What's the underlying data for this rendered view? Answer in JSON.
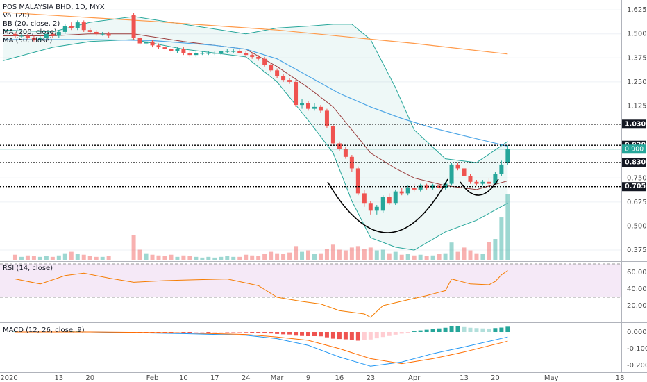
{
  "chart_data": {
    "type": "candlestick",
    "title": "POS MALAYSIA BHD, 1D, MYX",
    "volume_label": "Vol (20)",
    "dates": [
      "2020-01-02",
      "2020-01-03",
      "2020-01-06",
      "2020-01-07",
      "2020-01-08",
      "2020-01-09",
      "2020-01-10",
      "2020-01-13",
      "2020-01-14",
      "2020-01-15",
      "2020-01-16",
      "2020-01-17",
      "2020-01-20",
      "2020-01-21",
      "2020-01-22",
      "2020-01-23",
      "2020-01-29",
      "2020-01-30",
      "2020-01-31",
      "2020-02-03",
      "2020-02-04",
      "2020-02-05",
      "2020-02-06",
      "2020-02-07",
      "2020-02-10",
      "2020-02-11",
      "2020-02-12",
      "2020-02-13",
      "2020-02-14",
      "2020-02-17",
      "2020-02-18",
      "2020-02-19",
      "2020-02-20",
      "2020-02-21",
      "2020-02-24",
      "2020-02-25",
      "2020-02-26",
      "2020-02-27",
      "2020-02-28",
      "2020-03-02",
      "2020-03-03",
      "2020-03-04",
      "2020-03-05",
      "2020-03-06",
      "2020-03-09",
      "2020-03-10",
      "2020-03-11",
      "2020-03-12",
      "2020-03-13",
      "2020-03-16",
      "2020-03-17",
      "2020-03-18",
      "2020-03-19",
      "2020-03-20",
      "2020-03-23",
      "2020-03-24",
      "2020-03-25",
      "2020-03-26",
      "2020-03-27",
      "2020-03-30",
      "2020-03-31",
      "2020-04-01",
      "2020-04-02",
      "2020-04-03",
      "2020-04-06",
      "2020-04-07",
      "2020-04-08",
      "2020-04-09",
      "2020-04-10",
      "2020-04-13",
      "2020-04-14",
      "2020-04-15",
      "2020-04-16",
      "2020-04-17",
      "2020-04-20",
      "2020-04-21",
      "2020-04-22"
    ],
    "open": [
      1.5,
      1.49,
      1.49,
      1.48,
      1.47,
      1.48,
      1.5,
      1.49,
      1.51,
      1.54,
      1.53,
      1.56,
      1.52,
      1.51,
      1.5,
      1.5,
      1.6,
      1.48,
      1.45,
      1.46,
      1.44,
      1.43,
      1.42,
      1.41,
      1.42,
      1.4,
      1.39,
      1.4,
      1.4,
      1.4,
      1.4,
      1.41,
      1.41,
      1.41,
      1.4,
      1.39,
      1.38,
      1.37,
      1.34,
      1.31,
      1.28,
      1.26,
      1.25,
      1.13,
      1.14,
      1.11,
      1.12,
      1.1,
      1.02,
      0.93,
      0.9,
      0.86,
      0.8,
      0.67,
      0.62,
      0.58,
      0.58,
      0.65,
      0.62,
      0.68,
      0.67,
      0.7,
      0.69,
      0.71,
      0.7,
      0.71,
      0.7,
      0.72,
      0.82,
      0.8,
      0.76,
      0.73,
      0.72,
      0.73,
      0.72,
      0.77,
      0.83
    ],
    "high": [
      1.51,
      1.5,
      1.5,
      1.49,
      1.49,
      1.5,
      1.51,
      1.52,
      1.55,
      1.56,
      1.57,
      1.57,
      1.53,
      1.52,
      1.51,
      1.51,
      1.61,
      1.49,
      1.47,
      1.47,
      1.45,
      1.44,
      1.43,
      1.43,
      1.43,
      1.41,
      1.41,
      1.41,
      1.41,
      1.41,
      1.41,
      1.42,
      1.42,
      1.42,
      1.41,
      1.4,
      1.39,
      1.38,
      1.35,
      1.32,
      1.29,
      1.27,
      1.26,
      1.16,
      1.15,
      1.14,
      1.13,
      1.11,
      1.03,
      0.94,
      0.91,
      0.87,
      0.81,
      0.69,
      0.63,
      0.61,
      0.66,
      0.67,
      0.69,
      0.7,
      0.71,
      0.72,
      0.72,
      0.72,
      0.72,
      0.72,
      0.73,
      0.83,
      0.83,
      0.81,
      0.77,
      0.74,
      0.74,
      0.75,
      0.78,
      0.84,
      0.92
    ],
    "low": [
      1.48,
      1.48,
      1.47,
      1.46,
      1.46,
      1.47,
      1.48,
      1.48,
      1.5,
      1.52,
      1.52,
      1.51,
      1.5,
      1.49,
      1.49,
      1.48,
      1.47,
      1.44,
      1.44,
      1.43,
      1.42,
      1.41,
      1.4,
      1.4,
      1.39,
      1.38,
      1.38,
      1.39,
      1.39,
      1.39,
      1.39,
      1.4,
      1.4,
      1.4,
      1.38,
      1.37,
      1.36,
      1.33,
      1.3,
      1.27,
      1.25,
      1.24,
      1.12,
      1.11,
      1.1,
      1.1,
      1.09,
      1.01,
      0.92,
      0.89,
      0.85,
      0.78,
      0.66,
      0.6,
      0.56,
      0.56,
      0.57,
      0.61,
      0.61,
      0.66,
      0.66,
      0.68,
      0.68,
      0.69,
      0.69,
      0.69,
      0.69,
      0.71,
      0.79,
      0.75,
      0.72,
      0.71,
      0.71,
      0.71,
      0.72,
      0.76,
      0.82
    ],
    "close": [
      1.49,
      1.49,
      1.48,
      1.47,
      1.48,
      1.5,
      1.49,
      1.51,
      1.54,
      1.53,
      1.56,
      1.52,
      1.51,
      1.5,
      1.5,
      1.49,
      1.48,
      1.45,
      1.46,
      1.44,
      1.43,
      1.42,
      1.41,
      1.42,
      1.4,
      1.39,
      1.4,
      1.4,
      1.4,
      1.4,
      1.41,
      1.41,
      1.41,
      1.4,
      1.39,
      1.38,
      1.37,
      1.34,
      1.31,
      1.28,
      1.26,
      1.25,
      1.13,
      1.14,
      1.11,
      1.12,
      1.1,
      1.02,
      0.93,
      0.9,
      0.86,
      0.8,
      0.67,
      0.62,
      0.58,
      0.6,
      0.65,
      0.62,
      0.68,
      0.67,
      0.7,
      0.69,
      0.71,
      0.7,
      0.71,
      0.7,
      0.72,
      0.82,
      0.8,
      0.76,
      0.73,
      0.72,
      0.73,
      0.72,
      0.77,
      0.82,
      0.9
    ],
    "volume": [
      8,
      5,
      7,
      6,
      5,
      6,
      5,
      7,
      10,
      12,
      9,
      8,
      6,
      5,
      5,
      6,
      35,
      15,
      10,
      8,
      7,
      6,
      8,
      5,
      7,
      6,
      5,
      4,
      5,
      4,
      5,
      6,
      5,
      5,
      8,
      7,
      6,
      9,
      12,
      10,
      9,
      11,
      20,
      12,
      14,
      9,
      10,
      16,
      22,
      15,
      14,
      18,
      20,
      16,
      18,
      14,
      15,
      10,
      12,
      8,
      9,
      7,
      8,
      6,
      7,
      9,
      10,
      25,
      12,
      18,
      14,
      10,
      9,
      26,
      30,
      60,
      92
    ],
    "up_color": "#26a69a",
    "down_color": "#ef5350",
    "xlim": [
      "2019-12-31",
      "2020-05-18"
    ],
    "xticks": [
      {
        "value": "2020-01-01",
        "label": "2020"
      },
      {
        "value": "2020-01-13",
        "label": "13"
      },
      {
        "value": "2020-01-20",
        "label": "20"
      },
      {
        "value": "2020-02-03",
        "label": "Feb"
      },
      {
        "value": "2020-02-10",
        "label": "10"
      },
      {
        "value": "2020-02-17",
        "label": "17"
      },
      {
        "value": "2020-02-24",
        "label": "24"
      },
      {
        "value": "2020-03-02",
        "label": "Mar"
      },
      {
        "value": "2020-03-09",
        "label": "9"
      },
      {
        "value": "2020-03-16",
        "label": "16"
      },
      {
        "value": "2020-03-23",
        "label": "23"
      },
      {
        "value": "2020-04-01",
        "label": "Apr"
      },
      {
        "value": "2020-04-13",
        "label": "13"
      },
      {
        "value": "2020-04-20",
        "label": "20"
      },
      {
        "value": "2020-05-01",
        "label": "May"
      },
      {
        "value": "2020-05-18",
        "label": "18"
      }
    ],
    "ylim": [
      0.321,
      1.676
    ],
    "yticks": [
      1.625,
      {
        "value": 1.5,
        "label": "1.500"
      },
      1.375,
      {
        "value": 1.25,
        "label": "1.250"
      },
      1.125,
      {
        "value": 0.75,
        "label": "0.750"
      },
      0.625,
      {
        "value": 0.5,
        "label": "0.500"
      },
      0.375
    ],
    "grid": true,
    "levels": [
      {
        "value": 1.03,
        "label": "1.030"
      },
      {
        "value": 0.92,
        "label": "0.920"
      },
      {
        "value": 0.83,
        "label": "0.830"
      },
      {
        "value": 0.705,
        "label": "0.705"
      }
    ],
    "last_price": {
      "value": 0.9,
      "label": "0.900"
    },
    "bb": {
      "name": "BB (20, close, 2)",
      "band_color": "#26a69a",
      "basis_color": "#9b3d3d",
      "x": [
        "2019-12-31",
        "2020-01-10",
        "2020-01-20",
        "2020-01-29",
        "2020-02-10",
        "2020-02-24",
        "2020-03-02",
        "2020-03-09",
        "2020-03-13",
        "2020-03-18",
        "2020-03-23",
        "2020-03-27",
        "2020-04-01",
        "2020-04-08",
        "2020-04-15",
        "2020-04-22"
      ],
      "upper": [
        1.52,
        1.51,
        1.56,
        1.59,
        1.55,
        1.5,
        1.53,
        1.54,
        1.55,
        1.55,
        1.47,
        1.22,
        1.0,
        0.85,
        0.83,
        0.94
      ],
      "basis": [
        1.49,
        1.49,
        1.5,
        1.5,
        1.46,
        1.42,
        1.33,
        1.22,
        1.12,
        1.0,
        0.88,
        0.8,
        0.75,
        0.71,
        0.69,
        0.735
      ],
      "lower": [
        1.36,
        1.43,
        1.46,
        1.47,
        1.42,
        1.38,
        1.25,
        1.05,
        0.88,
        0.63,
        0.44,
        0.39,
        0.375,
        0.47,
        0.53,
        0.62
      ]
    },
    "overlays": [
      {
        "name": "MA (200, close)",
        "color": "#ff9a4a",
        "x": [
          "2019-12-31",
          "2020-02-03",
          "2020-03-02",
          "2020-04-01",
          "2020-04-22"
        ],
        "values": [
          1.612,
          1.565,
          1.52,
          1.45,
          1.395
        ]
      },
      {
        "name": "MA (50, close)",
        "color": "#4ea6e6",
        "x": [
          "2019-12-31",
          "2020-01-20",
          "2020-02-03",
          "2020-02-17",
          "2020-02-24",
          "2020-03-02",
          "2020-03-09",
          "2020-03-16",
          "2020-03-23",
          "2020-03-30",
          "2020-04-06",
          "2020-04-13",
          "2020-04-22"
        ],
        "values": [
          1.47,
          1.47,
          1.465,
          1.44,
          1.42,
          1.37,
          1.28,
          1.19,
          1.12,
          1.06,
          1.01,
          0.97,
          0.915
        ]
      }
    ],
    "rsi": {
      "name": "RSI (14, close)",
      "color": "#f57c00",
      "band": [
        30,
        70
      ],
      "band_color": "#9c27b0",
      "x": [
        "2020-01-02",
        "2020-01-08",
        "2020-01-14",
        "2020-01-17",
        "2020-01-23",
        "2020-01-29",
        "2020-02-05",
        "2020-02-12",
        "2020-02-19",
        "2020-02-26",
        "2020-03-02",
        "2020-03-06",
        "2020-03-11",
        "2020-03-16",
        "2020-03-20",
        "2020-03-23",
        "2020-03-25",
        "2020-03-31",
        "2020-04-03",
        "2020-04-08",
        "2020-04-09",
        "2020-04-14",
        "2020-04-17",
        "2020-04-20",
        "2020-04-21",
        "2020-04-22"
      ],
      "values": [
        52,
        46,
        56,
        59,
        53,
        48,
        50,
        51,
        52,
        44,
        30,
        25,
        22,
        14,
        10,
        6,
        20,
        27,
        32,
        38,
        52,
        46,
        45,
        49,
        57,
        62
      ],
      "ylim": [
        0.8,
        71.7
      ],
      "yticks": [
        {
          "value": 60,
          "label": "60.00"
        },
        {
          "value": 40,
          "label": "40.00"
        },
        {
          "value": 20,
          "label": "20.00"
        }
      ]
    },
    "macd": {
      "name": "MACD (12, 26, close, 9)",
      "macd_color": "#2196f3",
      "signal_color": "#ff6d00",
      "hist_colors": [
        "#26a69a",
        "#b2dfdb",
        "#ffcdd2",
        "#ef5350"
      ],
      "x": [
        "2020-01-02",
        "2020-01-20",
        "2020-02-10",
        "2020-02-24",
        "2020-03-02",
        "2020-03-09",
        "2020-03-16",
        "2020-03-23",
        "2020-03-30",
        "2020-04-06",
        "2020-04-13",
        "2020-04-22"
      ],
      "macd": [
        0.0,
        0.0,
        -0.01,
        -0.02,
        -0.04,
        -0.08,
        -0.15,
        -0.205,
        -0.18,
        -0.13,
        -0.09,
        -0.03
      ],
      "signal": [
        0.0,
        0.0,
        -0.005,
        -0.015,
        -0.03,
        -0.05,
        -0.1,
        -0.16,
        -0.19,
        -0.16,
        -0.12,
        -0.055
      ],
      "hist": [
        0.002,
        0.002,
        0.001,
        0,
        -0.001,
        0,
        0.001,
        0.002,
        0.003,
        0.004,
        0.004,
        0.003,
        0.002,
        0.001,
        0,
        0,
        -0.004,
        -0.006,
        -0.007,
        -0.007,
        -0.007,
        -0.007,
        -0.007,
        -0.006,
        -0.006,
        -0.006,
        -0.005,
        -0.004,
        -0.004,
        -0.003,
        -0.002,
        -0.002,
        -0.002,
        -0.002,
        -0.003,
        -0.004,
        -0.005,
        -0.007,
        -0.009,
        -0.012,
        -0.014,
        -0.015,
        -0.022,
        -0.024,
        -0.025,
        -0.025,
        -0.026,
        -0.032,
        -0.04,
        -0.042,
        -0.044,
        -0.048,
        -0.052,
        -0.05,
        -0.045,
        -0.038,
        -0.03,
        -0.024,
        -0.016,
        -0.01,
        -0.004,
        0.004,
        0.01,
        0.014,
        0.018,
        0.022,
        0.026,
        0.034,
        0.034,
        0.03,
        0.026,
        0.024,
        0.022,
        0.021,
        0.024,
        0.027,
        0.032
      ],
      "ylim": [
        -0.2375,
        0.0542
      ],
      "yticks": [
        {
          "value": 0,
          "label": "0.000"
        },
        {
          "value": -0.1,
          "label": "-0.100"
        },
        {
          "value": -0.2,
          "label": "-0.200"
        }
      ]
    }
  }
}
